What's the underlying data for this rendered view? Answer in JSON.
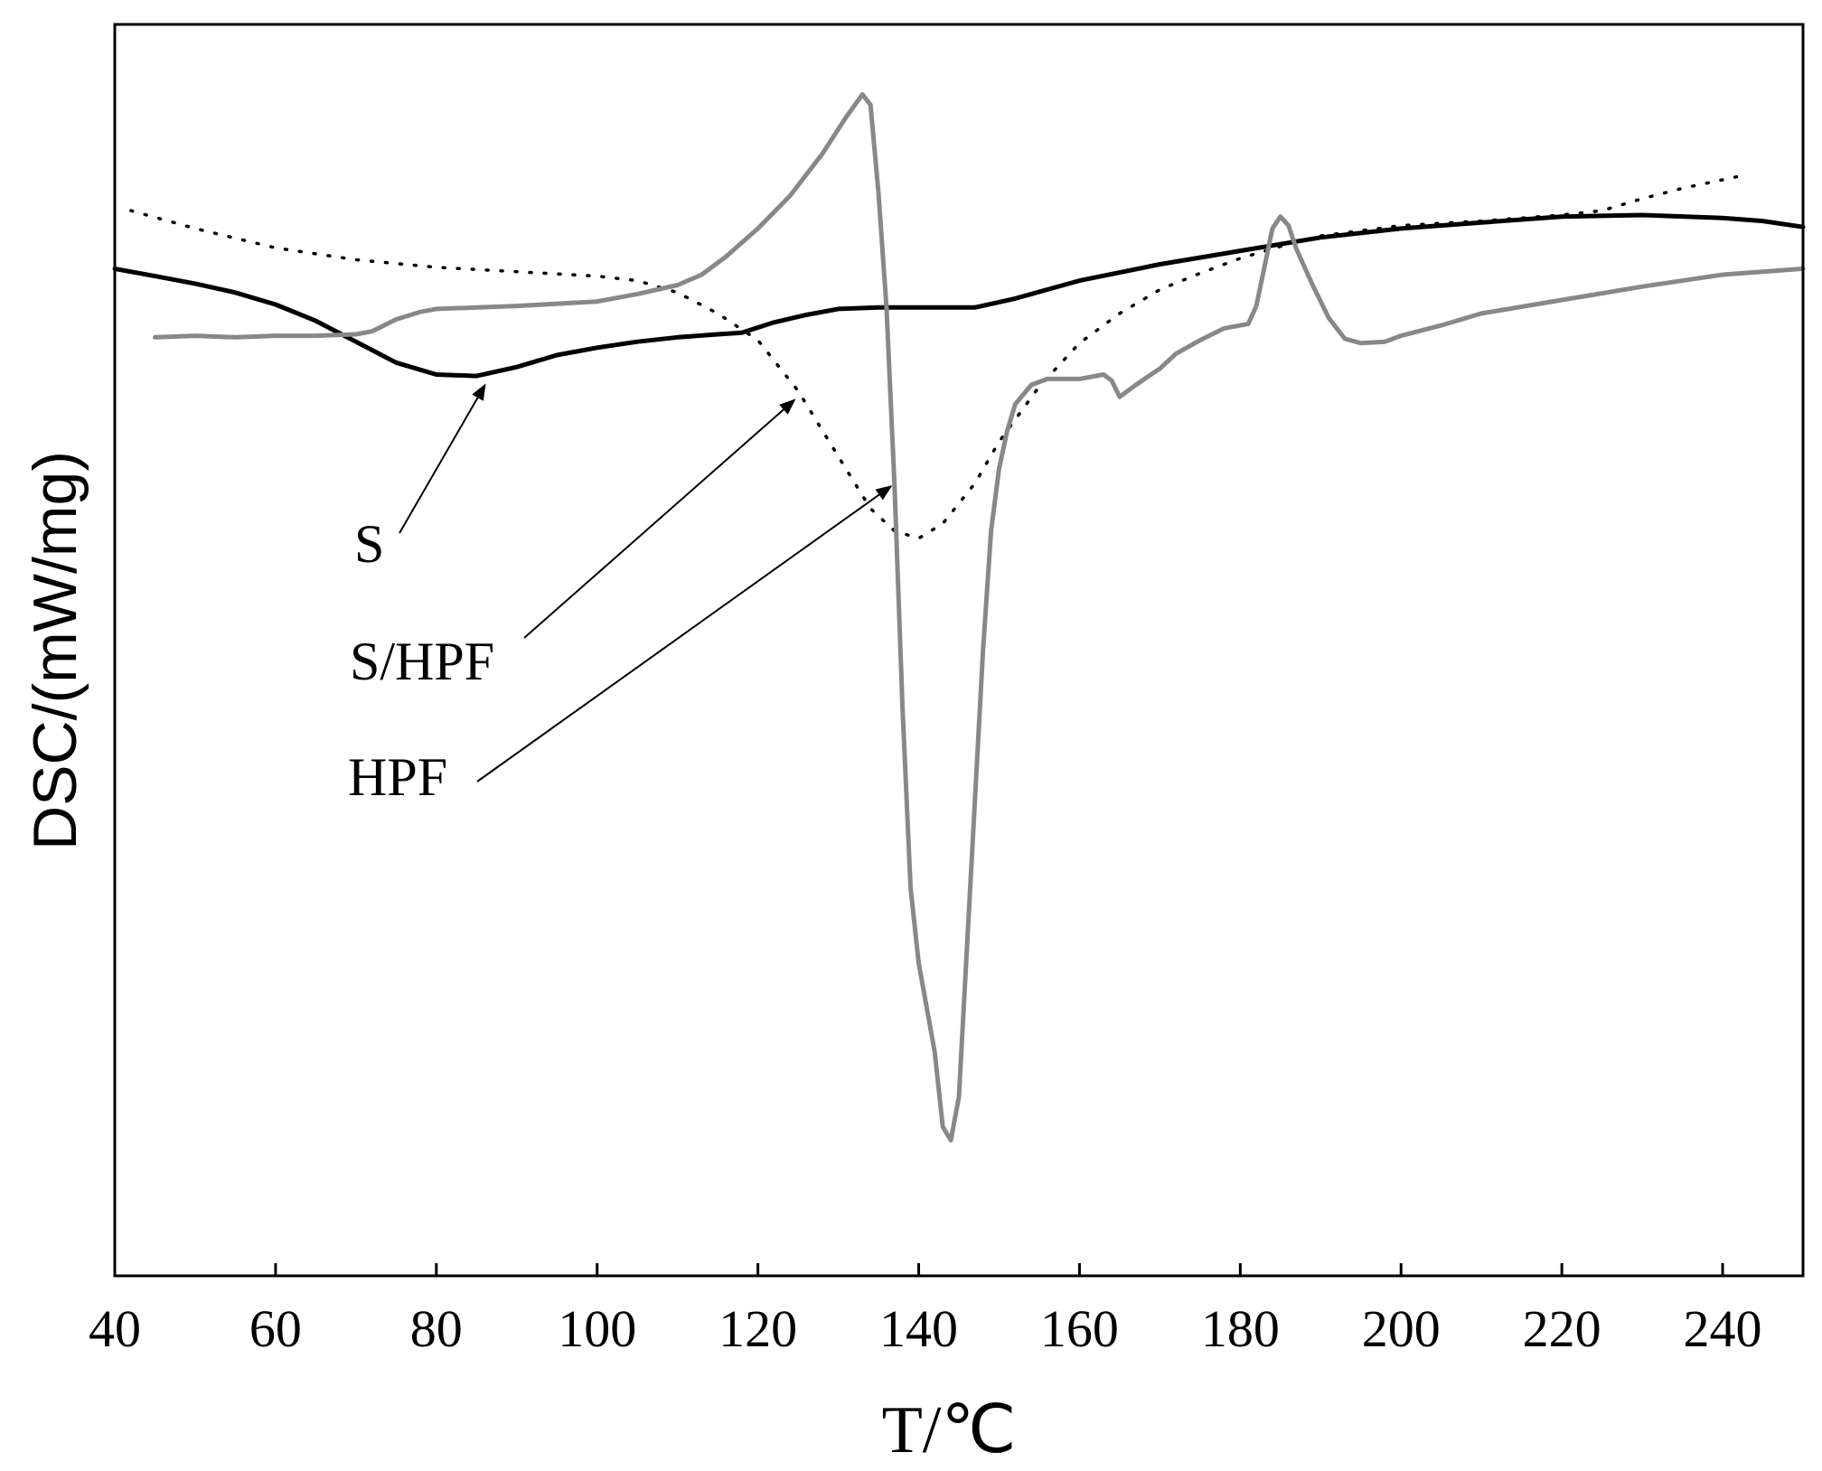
{
  "chart_data": {
    "type": "line",
    "xlabel": "T/℃",
    "ylabel": "DSC/(mW/mg)",
    "xlim": [
      40,
      250
    ],
    "x_ticks": [
      40,
      60,
      80,
      100,
      120,
      140,
      160,
      180,
      200,
      220,
      240
    ],
    "y_ticks_shown": false,
    "grid": false,
    "series": [
      {
        "name": "S",
        "color": "#000000",
        "style": "solid",
        "points": [
          [
            40,
            -2.4
          ],
          [
            45,
            -2.9
          ],
          [
            50,
            -3.4
          ],
          [
            55,
            -4.0
          ],
          [
            60,
            -4.8
          ],
          [
            65,
            -5.9
          ],
          [
            70,
            -7.3
          ],
          [
            75,
            -8.7
          ],
          [
            80,
            -9.5
          ],
          [
            85,
            -9.6
          ],
          [
            90,
            -9.0
          ],
          [
            95,
            -8.2
          ],
          [
            100,
            -7.7
          ],
          [
            105,
            -7.3
          ],
          [
            110,
            -7.0
          ],
          [
            115,
            -6.8
          ],
          [
            118,
            -6.7
          ],
          [
            122,
            -6.0
          ],
          [
            126,
            -5.5
          ],
          [
            130,
            -5.1
          ],
          [
            135,
            -5.0
          ],
          [
            140,
            -5.0
          ],
          [
            147,
            -5.0
          ],
          [
            152,
            -4.4
          ],
          [
            156,
            -3.8
          ],
          [
            160,
            -3.2
          ],
          [
            170,
            -2.1
          ],
          [
            180,
            -1.2
          ],
          [
            190,
            -0.3
          ],
          [
            200,
            0.3
          ],
          [
            210,
            0.7
          ],
          [
            220,
            1.1
          ],
          [
            230,
            1.2
          ],
          [
            240,
            1.0
          ],
          [
            245,
            0.8
          ],
          [
            250,
            0.4
          ]
        ]
      },
      {
        "name": "S/HPF",
        "color": "#000000",
        "style": "dotted",
        "points": [
          [
            42,
            1.5
          ],
          [
            50,
            0.3
          ],
          [
            60,
            -1.0
          ],
          [
            70,
            -1.8
          ],
          [
            80,
            -2.3
          ],
          [
            90,
            -2.6
          ],
          [
            100,
            -2.9
          ],
          [
            105,
            -3.2
          ],
          [
            110,
            -4.0
          ],
          [
            115,
            -5.4
          ],
          [
            120,
            -7.2
          ],
          [
            125,
            -10.6
          ],
          [
            130,
            -15.0
          ],
          [
            134,
            -18.5
          ],
          [
            137,
            -20.0
          ],
          [
            140,
            -20.5
          ],
          [
            143,
            -19.5
          ],
          [
            147,
            -16.8
          ],
          [
            150,
            -14.0
          ],
          [
            155,
            -10.3
          ],
          [
            160,
            -7.4
          ],
          [
            165,
            -5.4
          ],
          [
            170,
            -3.8
          ],
          [
            175,
            -2.7
          ],
          [
            180,
            -1.7
          ],
          [
            185,
            -0.9
          ],
          [
            190,
            -0.2
          ],
          [
            200,
            0.5
          ],
          [
            210,
            0.8
          ],
          [
            220,
            1.2
          ],
          [
            225,
            1.5
          ],
          [
            230,
            2.3
          ],
          [
            235,
            3.0
          ],
          [
            242,
            3.8
          ]
        ]
      },
      {
        "name": "HPF",
        "color": "#888888",
        "style": "solid",
        "points": [
          [
            45,
            -7.0
          ],
          [
            50,
            -6.9
          ],
          [
            55,
            -7.0
          ],
          [
            60,
            -6.9
          ],
          [
            65,
            -6.9
          ],
          [
            70,
            -6.8
          ],
          [
            72,
            -6.6
          ],
          [
            75,
            -5.8
          ],
          [
            78,
            -5.3
          ],
          [
            80,
            -5.1
          ],
          [
            90,
            -4.9
          ],
          [
            100,
            -4.6
          ],
          [
            105,
            -4.1
          ],
          [
            110,
            -3.5
          ],
          [
            113,
            -2.8
          ],
          [
            116,
            -1.6
          ],
          [
            120,
            0.3
          ],
          [
            124,
            2.5
          ],
          [
            128,
            5.3
          ],
          [
            131,
            7.8
          ],
          [
            133,
            9.3
          ],
          [
            134,
            8.6
          ],
          [
            135,
            2.7
          ],
          [
            136,
            -5.0
          ],
          [
            137,
            -17.0
          ],
          [
            138,
            -32.0
          ],
          [
            139,
            -44.0
          ],
          [
            140,
            -49.0
          ],
          [
            142,
            -55.0
          ],
          [
            143,
            -60.0
          ],
          [
            144,
            -60.9
          ],
          [
            145,
            -58.0
          ],
          [
            146,
            -48.0
          ],
          [
            147,
            -38.0
          ],
          [
            148,
            -28.0
          ],
          [
            149,
            -20.0
          ],
          [
            150,
            -15.8
          ],
          [
            151,
            -13.3
          ],
          [
            152,
            -11.5
          ],
          [
            154,
            -10.2
          ],
          [
            156,
            -9.8
          ],
          [
            160,
            -9.8
          ],
          [
            163,
            -9.5
          ],
          [
            164,
            -9.9
          ],
          [
            165,
            -11.0
          ],
          [
            167,
            -10.2
          ],
          [
            170,
            -9.1
          ],
          [
            172,
            -8.1
          ],
          [
            175,
            -7.2
          ],
          [
            178,
            -6.4
          ],
          [
            181,
            -6.1
          ],
          [
            182,
            -4.9
          ],
          [
            183,
            -2.3
          ],
          [
            184,
            0.3
          ],
          [
            185,
            1.1
          ],
          [
            186,
            0.5
          ],
          [
            187,
            -1.1
          ],
          [
            189,
            -3.5
          ],
          [
            191,
            -5.7
          ],
          [
            193,
            -7.1
          ],
          [
            195,
            -7.4
          ],
          [
            198,
            -7.3
          ],
          [
            200,
            -6.9
          ],
          [
            205,
            -6.2
          ],
          [
            210,
            -5.4
          ],
          [
            220,
            -4.5
          ],
          [
            230,
            -3.6
          ],
          [
            240,
            -2.8
          ],
          [
            250,
            -2.4
          ]
        ]
      }
    ],
    "annotations": [
      {
        "text": "S",
        "points_to_x": 86.5
      },
      {
        "text": "S/HPF",
        "points_to_x": 125
      },
      {
        "text": "HPF",
        "points_to_x": 137
      }
    ]
  }
}
